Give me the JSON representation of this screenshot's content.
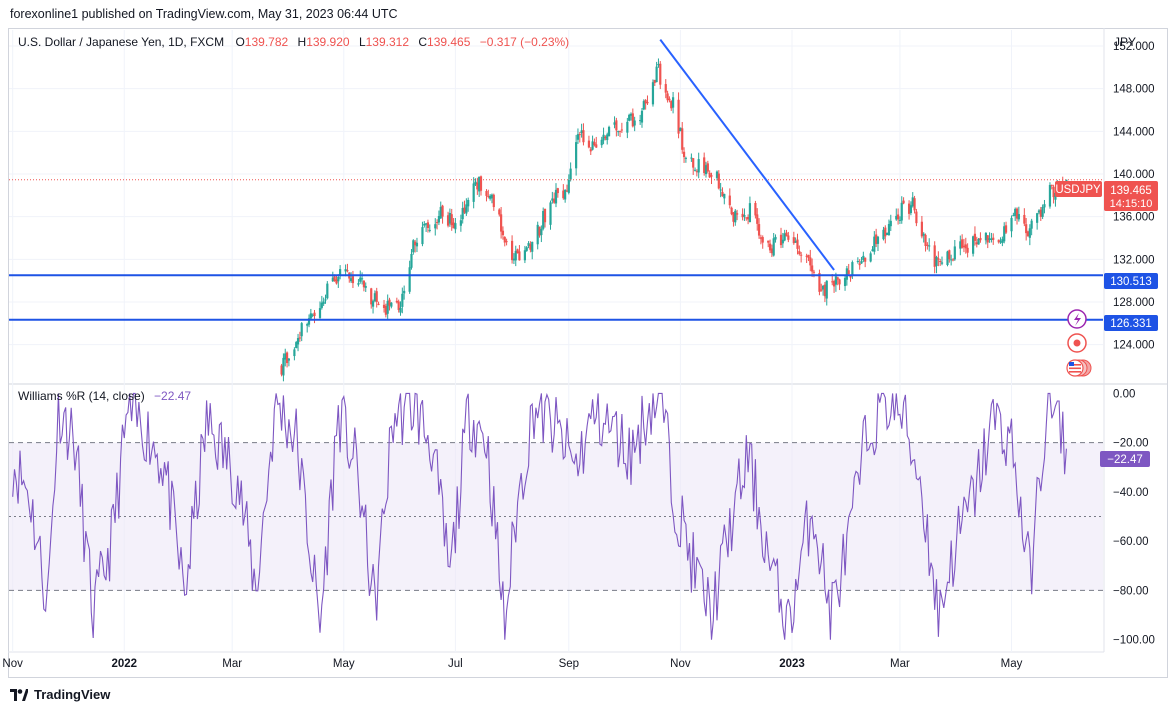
{
  "header": {
    "published": "forexonline1 published on TradingView.com, May 31, 2023 06:44 UTC"
  },
  "legend": {
    "symbol": "U.S. Dollar / Japanese Yen, 1D, FXCM",
    "o_label": "O",
    "o_value": "139.782",
    "h_label": "H",
    "h_value": "139.920",
    "l_label": "L",
    "l_value": "139.312",
    "c_label": "C",
    "c_value": "139.465",
    "change": "−0.317 (−0.23%)"
  },
  "currency": "JPY",
  "price_tag": {
    "label": "USDJPY",
    "price": "139.465",
    "countdown": "14:15:10"
  },
  "level_tags": [
    "130.513",
    "126.331"
  ],
  "indicator": {
    "name": "Williams %R (14, close)",
    "value": "−22.47",
    "tag": "−22.47"
  },
  "footer": {
    "brand": "TradingView"
  },
  "colors": {
    "up": "#26a69a",
    "down": "#ef5350",
    "trend": "#2962ff",
    "level": "#1e53e5",
    "wr": "#7e57c2"
  },
  "chart_data": [
    {
      "type": "candlestick",
      "title": "U.S. Dollar / Japanese Yen, 1D, FXCM",
      "ylabel": "JPY",
      "ylim": [
        120.5,
        153.5
      ],
      "y_ticks": [
        "152.000",
        "148.000",
        "144.000",
        "140.000",
        "136.000",
        "132.000",
        "128.000",
        "124.000"
      ],
      "x_ticks": [
        "Nov",
        "2022",
        "Mar",
        "May",
        "Jul",
        "Sep",
        "Nov",
        "2023",
        "Mar",
        "May"
      ],
      "x_range": [
        "2021-10-30",
        "2023-06-20"
      ],
      "series": [
        {
          "x": [
            "2022-03-28",
            "2022-04-08",
            "2022-04-20",
            "2022-04-28",
            "2022-05-09",
            "2022-05-20",
            "2022-05-31",
            "2022-06-08",
            "2022-06-15",
            "2022-06-22",
            "2022-07-01",
            "2022-07-14",
            "2022-07-20",
            "2022-08-01",
            "2022-08-12",
            "2022-08-22",
            "2022-09-01",
            "2022-09-07",
            "2022-09-13",
            "2022-09-22",
            "2022-09-30",
            "2022-10-10",
            "2022-10-20",
            "2022-10-21",
            "2022-10-28",
            "2022-11-04",
            "2022-11-10",
            "2022-11-21",
            "2022-11-30",
            "2022-12-09",
            "2022-12-20",
            "2022-12-28",
            "2023-01-10",
            "2023-01-16",
            "2023-01-25",
            "2023-02-06",
            "2023-02-15",
            "2023-02-28",
            "2023-03-08",
            "2023-03-20",
            "2023-03-30",
            "2023-04-11",
            "2023-04-25",
            "2023-05-02",
            "2023-05-11",
            "2023-05-22",
            "2023-05-31"
          ],
          "close": [
            122.0,
            125.5,
            128.7,
            130.7,
            130.1,
            127.7,
            127.2,
            133.6,
            135.0,
            136.3,
            135.4,
            139.4,
            138.2,
            131.8,
            133.4,
            137.3,
            139.0,
            143.9,
            142.8,
            143.8,
            144.6,
            145.6,
            150.0,
            148.3,
            146.5,
            141.4,
            140.7,
            139.7,
            136.2,
            136.5,
            133.0,
            133.9,
            132.3,
            128.4,
            130.2,
            131.5,
            133.8,
            136.3,
            137.1,
            131.5,
            132.7,
            133.6,
            134.2,
            136.5,
            134.5,
            138.2,
            139.465
          ]
        }
      ],
      "annotations": {
        "trendline": {
          "start": [
            "2022-10-21",
            152.6
          ],
          "end": [
            "2023-01-24",
            131.0
          ]
        },
        "horizontal_levels": [
          130.513,
          126.331
        ],
        "last_price": 139.465
      }
    },
    {
      "type": "line",
      "title": "Williams %R (14, close)",
      "ylim": [
        -105,
        3
      ],
      "y_ticks": [
        "0.00",
        "−20.00",
        "−40.00",
        "−60.00",
        "−80.00",
        "−100.00"
      ],
      "bands": [
        -20,
        -50,
        -80
      ],
      "last_value": -22.47,
      "series": [
        {
          "name": "Williams %R (14, close)",
          "x": [
            "2021-11-01",
            "2021-11-10",
            "2021-11-20",
            "2021-11-26",
            "2021-12-05",
            "2021-12-15",
            "2021-12-25",
            "2022-01-03",
            "2022-01-13",
            "2022-01-23",
            "2022-02-03",
            "2022-02-15",
            "2022-02-25",
            "2022-03-04",
            "2022-03-14",
            "2022-03-25",
            "2022-04-05",
            "2022-04-18",
            "2022-04-28",
            "2022-05-08",
            "2022-05-18",
            "2022-05-28",
            "2022-06-08",
            "2022-06-18",
            "2022-06-28",
            "2022-07-08",
            "2022-07-18",
            "2022-07-28",
            "2022-08-03",
            "2022-08-13",
            "2022-08-25",
            "2022-09-05",
            "2022-09-15",
            "2022-09-25",
            "2022-10-05",
            "2022-10-15",
            "2022-10-22",
            "2022-10-28",
            "2022-11-08",
            "2022-11-18",
            "2022-11-28",
            "2022-12-08",
            "2022-12-20",
            "2022-12-30",
            "2023-01-12",
            "2023-01-22",
            "2023-02-01",
            "2023-02-10",
            "2023-02-20",
            "2023-03-02",
            "2023-03-12",
            "2023-03-22",
            "2023-04-01",
            "2023-04-11",
            "2023-04-21",
            "2023-05-01",
            "2023-05-11",
            "2023-05-21",
            "2023-05-31"
          ],
          "values": [
            -28,
            -40,
            -85,
            -5,
            -20,
            -90,
            -60,
            -8,
            -15,
            -30,
            -82,
            -12,
            -25,
            -35,
            -80,
            -3,
            -18,
            -95,
            -8,
            -30,
            -88,
            -10,
            -5,
            -20,
            -75,
            -8,
            -18,
            -95,
            -50,
            -5,
            -15,
            -30,
            -8,
            -15,
            -25,
            -5,
            -2,
            -40,
            -70,
            -90,
            -55,
            -25,
            -70,
            -95,
            -45,
            -90,
            -60,
            -20,
            -3,
            -8,
            -35,
            -90,
            -60,
            -40,
            -10,
            -20,
            -75,
            -2,
            -22.47
          ]
        }
      ]
    }
  ]
}
